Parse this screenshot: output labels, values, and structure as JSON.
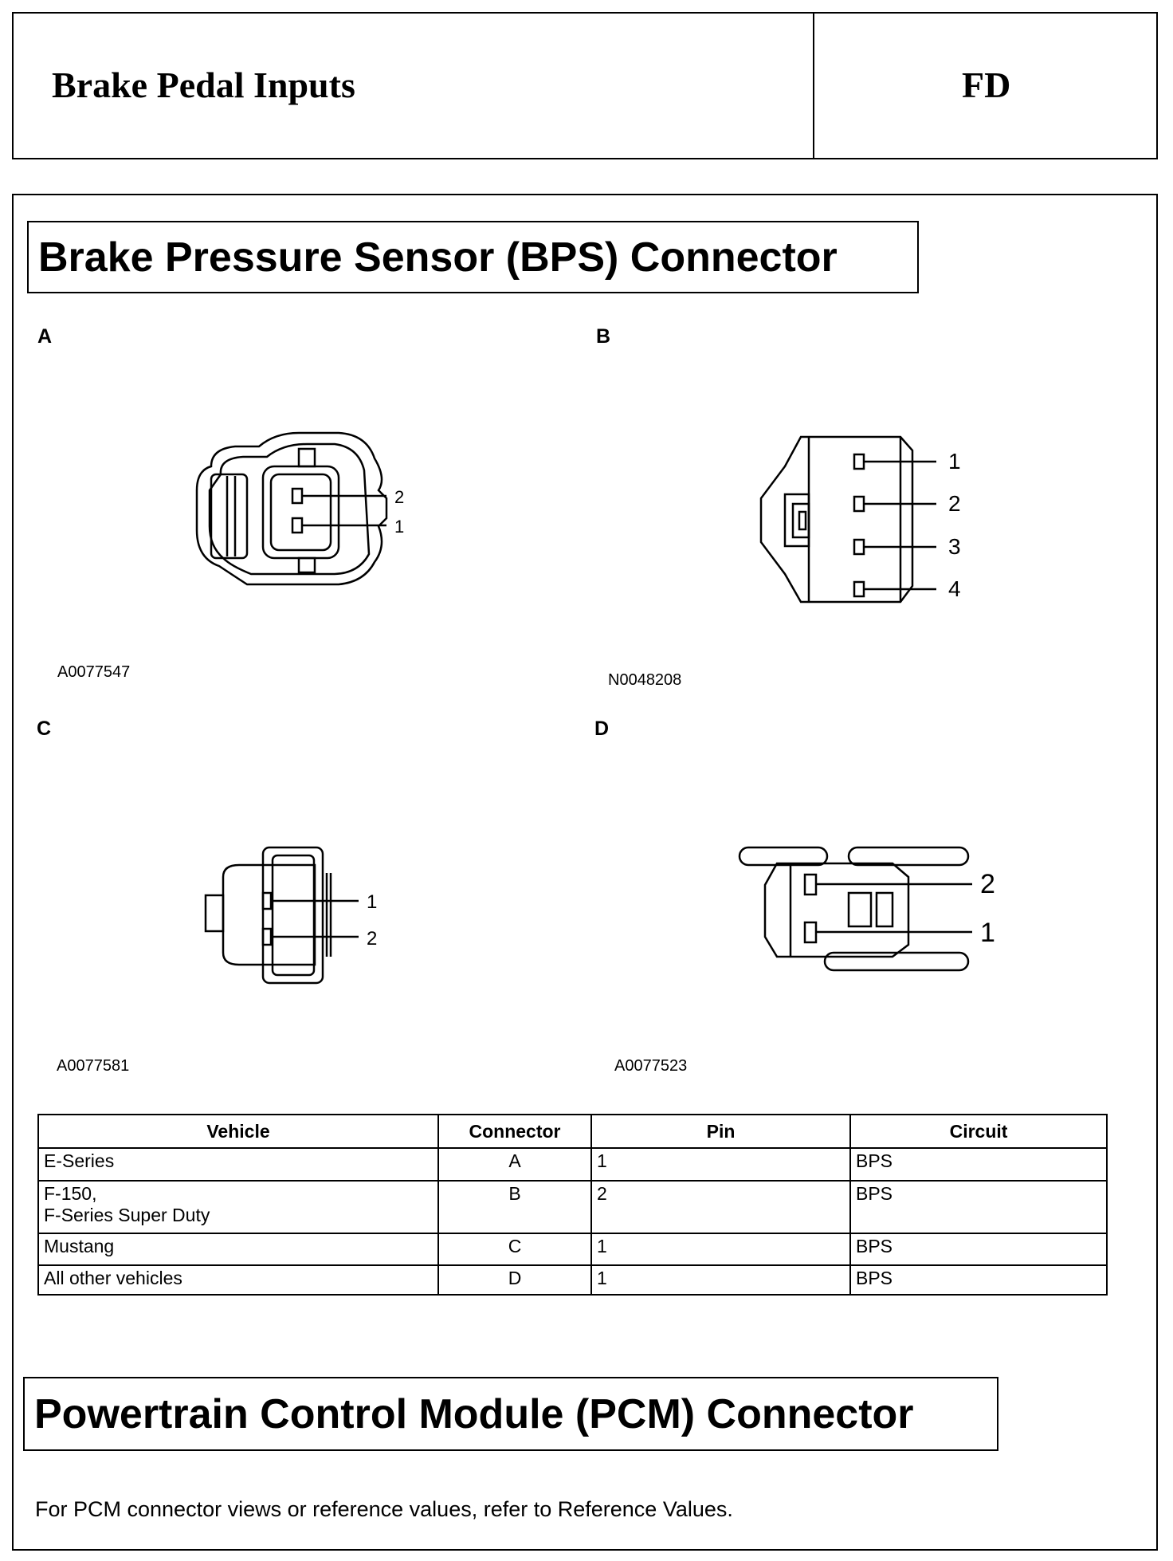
{
  "header": {
    "title": "Brake Pedal Inputs",
    "code": "FD"
  },
  "bps_section": {
    "title": "Brake Pressure Sensor (BPS) Connector",
    "figures": [
      {
        "label": "A",
        "code": "A0077547",
        "pins": [
          "2",
          "1"
        ]
      },
      {
        "label": "B",
        "code": "N0048208",
        "pins": [
          "1",
          "2",
          "3",
          "4"
        ]
      },
      {
        "label": "C",
        "code": "A0077581",
        "pins": [
          "1",
          "2"
        ]
      },
      {
        "label": "D",
        "code": "A0077523",
        "pins": [
          "2",
          "1"
        ]
      }
    ],
    "table": {
      "headers": [
        "Vehicle",
        "Connector",
        "Pin",
        "Circuit"
      ],
      "rows": [
        {
          "vehicle": [
            "E-Series"
          ],
          "connector": "A",
          "pin": "1",
          "circuit": "BPS"
        },
        {
          "vehicle": [
            "F-150,",
            "F-Series Super Duty"
          ],
          "connector": "B",
          "pin": "2",
          "circuit": "BPS"
        },
        {
          "vehicle": [
            "Mustang"
          ],
          "connector": "C",
          "pin": "1",
          "circuit": "BPS"
        },
        {
          "vehicle": [
            "All other vehicles"
          ],
          "connector": "D",
          "pin": "1",
          "circuit": "BPS"
        }
      ]
    }
  },
  "pcm_section": {
    "title": "Powertrain Control Module (PCM) Connector",
    "text": "For PCM connector views or reference values, refer to Reference Values."
  }
}
